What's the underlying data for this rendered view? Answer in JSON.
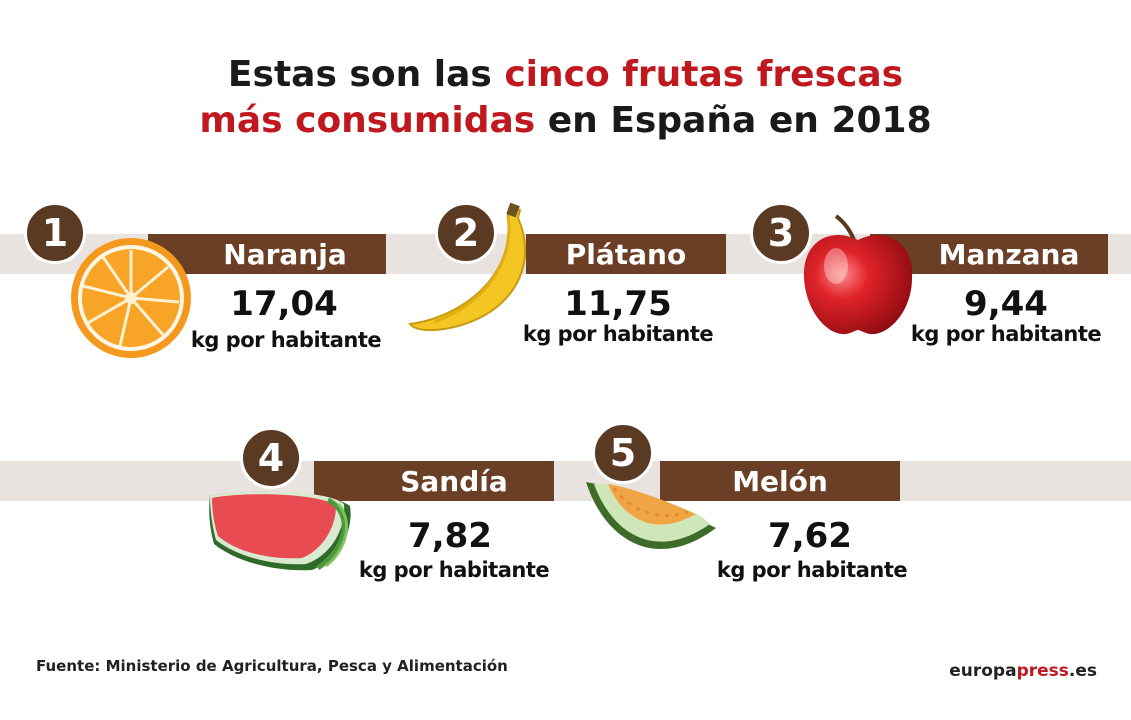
{
  "title": {
    "line1_pre": "Estas son las ",
    "line1_accent": "cinco frutas frescas",
    "line2_accent": "más consumidas",
    "line2_post": " en España en 2018"
  },
  "items": [
    {
      "rank": "1",
      "name": "Naranja",
      "value": "17,04",
      "unit": "kg por habitante",
      "icon": "orange-icon"
    },
    {
      "rank": "2",
      "name": "Plátano",
      "value": "11,75",
      "unit": "kg por habitante",
      "icon": "banana-icon"
    },
    {
      "rank": "3",
      "name": "Manzana",
      "value": "9,44",
      "unit": "kg por habitante",
      "icon": "apple-icon"
    },
    {
      "rank": "4",
      "name": "Sandía",
      "value": "7,82",
      "unit": "kg por habitante",
      "icon": "watermelon-icon"
    },
    {
      "rank": "5",
      "name": "Melón",
      "value": "7,62",
      "unit": "kg por habitante",
      "icon": "melon-icon"
    }
  ],
  "footer": {
    "source": "Fuente: Ministerio de Agricultura, Pesca y Alimentación",
    "brand_pre": "europa",
    "brand_accent": "press",
    "brand_post": ".es"
  },
  "colors": {
    "accent": "#c0181f",
    "band": "#e8e3df",
    "tag": "#6b3f25",
    "badge": "#5a3a22"
  }
}
